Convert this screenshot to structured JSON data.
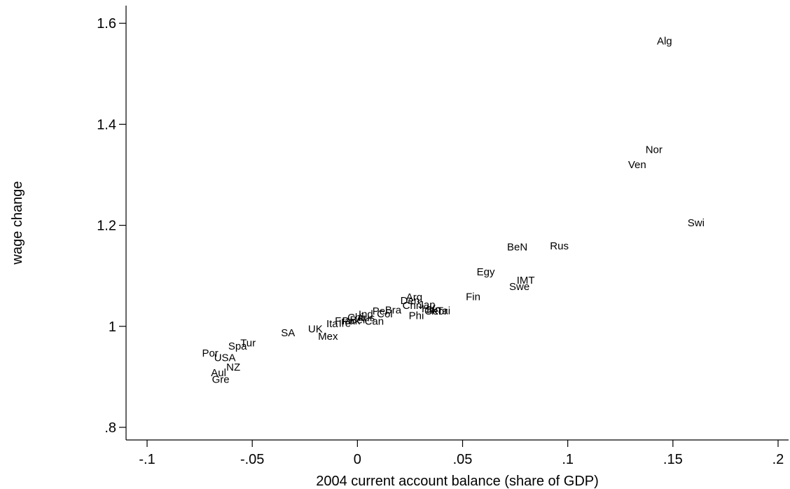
{
  "chart_data": {
    "type": "scatter",
    "marker": "country-label",
    "xlabel": "2004 current account balance (share of GDP)",
    "ylabel": "wage change",
    "xlim": [
      -0.11,
      0.205
    ],
    "ylim": [
      0.775,
      1.635
    ],
    "xticks": [
      -0.1,
      -0.05,
      0,
      0.05,
      0.1,
      0.15,
      0.2
    ],
    "xtick_labels": [
      "-.1",
      "-.05",
      "0",
      ".05",
      ".1",
      ".15",
      ".2"
    ],
    "yticks": [
      0.8,
      1.0,
      1.2,
      1.4,
      1.6
    ],
    "ytick_labels": [
      ".8",
      "1",
      "1.2",
      "1.4",
      "1.6"
    ],
    "grid": false,
    "points": [
      {
        "label": "Alg",
        "x": 0.146,
        "y": 1.565
      },
      {
        "label": "Nor",
        "x": 0.141,
        "y": 1.35
      },
      {
        "label": "Ven",
        "x": 0.133,
        "y": 1.32
      },
      {
        "label": "Swi",
        "x": 0.161,
        "y": 1.205
      },
      {
        "label": "BeN",
        "x": 0.076,
        "y": 1.157
      },
      {
        "label": "Rus",
        "x": 0.096,
        "y": 1.159
      },
      {
        "label": "Egy",
        "x": 0.061,
        "y": 1.108
      },
      {
        "label": "IMT",
        "x": 0.08,
        "y": 1.091
      },
      {
        "label": "Swe",
        "x": 0.077,
        "y": 1.079
      },
      {
        "label": "Fin",
        "x": 0.055,
        "y": 1.059
      },
      {
        "label": "Arg",
        "x": 0.027,
        "y": 1.058
      },
      {
        "label": "Den",
        "x": 0.025,
        "y": 1.051
      },
      {
        "label": "Jap",
        "x": 0.033,
        "y": 1.043
      },
      {
        "label": "Chn",
        "x": 0.026,
        "y": 1.041
      },
      {
        "label": "HK",
        "x": 0.034,
        "y": 1.035
      },
      {
        "label": "Ger",
        "x": 0.036,
        "y": 1.03
      },
      {
        "label": "Sin",
        "x": 0.036,
        "y": 1.033
      },
      {
        "label": "Kor",
        "x": 0.039,
        "y": 1.03
      },
      {
        "label": "Tai",
        "x": 0.041,
        "y": 1.031
      },
      {
        "label": "Phi",
        "x": 0.028,
        "y": 1.021
      },
      {
        "label": "Can",
        "x": 0.008,
        "y": 1.01
      },
      {
        "label": "Bra",
        "x": 0.017,
        "y": 1.032
      },
      {
        "label": "Per",
        "x": 0.011,
        "y": 1.03
      },
      {
        "label": "Col",
        "x": 0.013,
        "y": 1.025
      },
      {
        "label": "Ind",
        "x": 0.004,
        "y": 1.024
      },
      {
        "label": "Chi",
        "x": -0.001,
        "y": 1.018
      },
      {
        "label": "Aus",
        "x": 0.004,
        "y": 1.017
      },
      {
        "label": "Pak",
        "x": -0.003,
        "y": 1.011
      },
      {
        "label": "Bel",
        "x": 0.0,
        "y": 1.013
      },
      {
        "label": "Fra",
        "x": -0.007,
        "y": 1.011
      },
      {
        "label": "Ire",
        "x": -0.006,
        "y": 1.006
      },
      {
        "label": "Ita",
        "x": -0.012,
        "y": 1.005
      },
      {
        "label": "UK",
        "x": -0.02,
        "y": 0.995
      },
      {
        "label": "Mex",
        "x": -0.014,
        "y": 0.98
      },
      {
        "label": "SA",
        "x": -0.033,
        "y": 0.987
      },
      {
        "label": "Tur",
        "x": -0.052,
        "y": 0.967
      },
      {
        "label": "Spa",
        "x": -0.057,
        "y": 0.961
      },
      {
        "label": "Por",
        "x": -0.07,
        "y": 0.947
      },
      {
        "label": "USA",
        "x": -0.063,
        "y": 0.938
      },
      {
        "label": "NZ",
        "x": -0.059,
        "y": 0.919
      },
      {
        "label": "Aul",
        "x": -0.066,
        "y": 0.908
      },
      {
        "label": "Gre",
        "x": -0.065,
        "y": 0.895
      }
    ]
  }
}
